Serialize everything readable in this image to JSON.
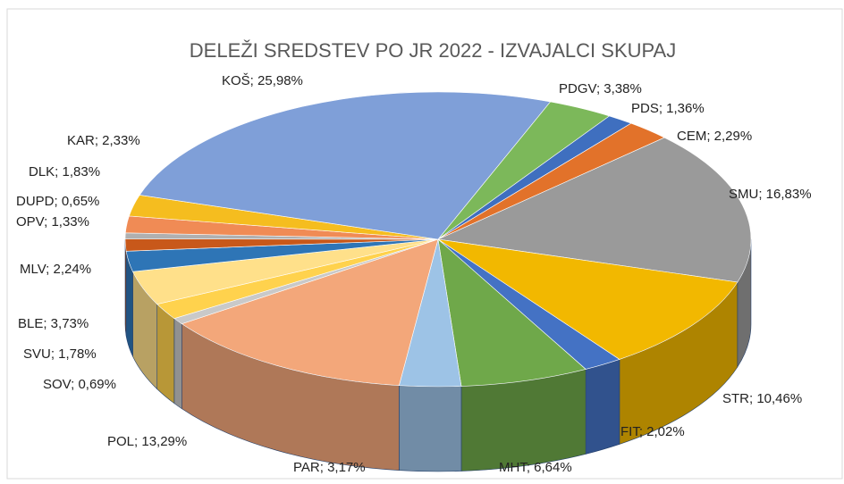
{
  "chart_data": {
    "type": "pie",
    "title": "DELEŽI SREDSTEV PO JR 2022 - IZVAJALCI SKUPAJ",
    "values": [
      3.38,
      1.36,
      2.29,
      16.83,
      10.46,
      2.02,
      6.64,
      3.17,
      13.29,
      0.69,
      1.78,
      3.73,
      2.24,
      1.33,
      0.65,
      1.83,
      2.33,
      25.98
    ],
    "value_labels": [
      "PDGV; 3,38%",
      "PDS; 1,36%",
      "CEM; 2,29%",
      "SMU; 16,83%",
      "STR; 10,46%",
      "FIT; 2,02%",
      "MHT; 6,64%",
      "PAR; 3,17%",
      "POL; 13,29%",
      "SOV; 0,69%",
      "SVU; 1,78%",
      "BLE; 3,73%",
      "MLV; 2,24%",
      "OPV; 1,33%",
      "DUPD; 0,65%",
      "DLK; 1,83%",
      "KAR; 2,33%",
      "KOŠ; 25,98%"
    ],
    "colors": [
      "#7cb85a",
      "#3f6fbf",
      "#e2722a",
      "#9a9a9a",
      "#f2b800",
      "#4472c4",
      "#6fa84a",
      "#9dc3e6",
      "#f3a77a",
      "#c9c9c9",
      "#ffd24d",
      "#ffe08a",
      "#2e75b6",
      "#c8581a",
      "#b0b0b0",
      "#f08b55",
      "#f5bd1f",
      "#7f9fd8"
    ]
  }
}
